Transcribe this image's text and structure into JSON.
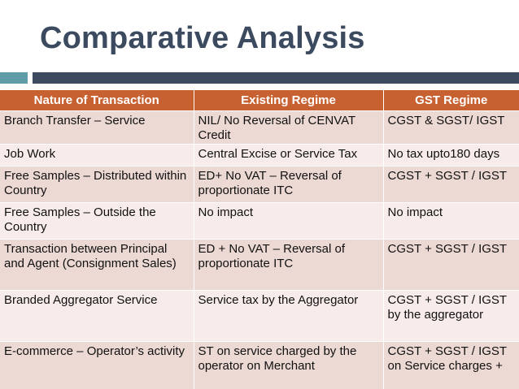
{
  "slide": {
    "title": "Comparative Analysis"
  },
  "colors": {
    "title": "#3b4a5f",
    "header_bg": "#c86131",
    "accent_teal": "#5f9ea8",
    "accent_bar": "#3b4a5f",
    "row_dark": "#ecd9d4",
    "row_light": "#f7ecea"
  },
  "table": {
    "headers": [
      "Nature of Transaction",
      "Existing Regime",
      "GST Regime"
    ],
    "rows": [
      [
        "Branch Transfer – Service",
        "NIL/ No Reversal of CENVAT Credit",
        "CGST & SGST/ IGST"
      ],
      [
        "Job Work",
        "Central Excise or Service Tax",
        "No tax upto180 days"
      ],
      [
        "Free Samples – Distributed within Country",
        "ED+ No VAT – Reversal of proportionate ITC",
        "CGST + SGST / IGST"
      ],
      [
        "Free Samples – Outside the Country",
        "No impact",
        "No impact"
      ],
      [
        "Transaction between Principal and Agent (Consignment Sales)",
        "ED + No VAT – Reversal of proportionate ITC",
        "CGST + SGST / IGST"
      ],
      [
        "Branded Aggregator Service",
        "Service tax by the Aggregator",
        "CGST + SGST / IGST by the aggregator"
      ],
      [
        "E-commerce – Operator’s activity",
        "ST on service charged by the operator on Merchant",
        "CGST + SGST / IGST on Service charges +"
      ]
    ]
  }
}
